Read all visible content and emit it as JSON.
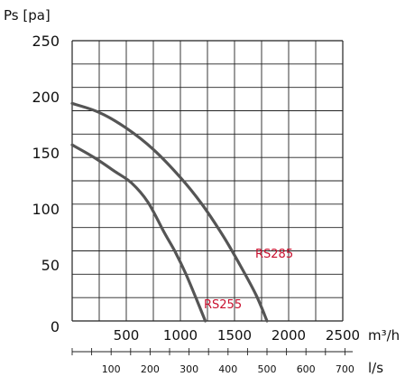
{
  "chart_data": {
    "type": "line",
    "ylabel": "Ps [pa]",
    "x_unit_primary": "m³/h",
    "x_unit_secondary": "l/s",
    "xlim": [
      0,
      2500
    ],
    "ylim": [
      0,
      250
    ],
    "y_ticks": [
      "0",
      "50",
      "100",
      "150",
      "200",
      "250"
    ],
    "x_ticks": [
      "500",
      "1000",
      "1500",
      "2000",
      "2500"
    ],
    "x2_ticks": [
      "100",
      "200",
      "300",
      "400",
      "500",
      "600",
      "700"
    ],
    "grid": true,
    "curve_color": "#555555",
    "label_color": "#c8102e",
    "series": [
      {
        "name": "RS285",
        "x": [
          0,
          250,
          500,
          750,
          1000,
          1200,
          1400,
          1550,
          1700,
          1800
        ],
        "y": [
          194,
          186,
          172,
          153,
          128,
          104,
          75,
          50,
          23,
          0
        ]
      },
      {
        "name": "RS255",
        "x": [
          0,
          200,
          400,
          550,
          700,
          850,
          950,
          1050,
          1150,
          1230
        ],
        "y": [
          157,
          146,
          133,
          123,
          106,
          79,
          62,
          42,
          19,
          0
        ]
      }
    ]
  }
}
